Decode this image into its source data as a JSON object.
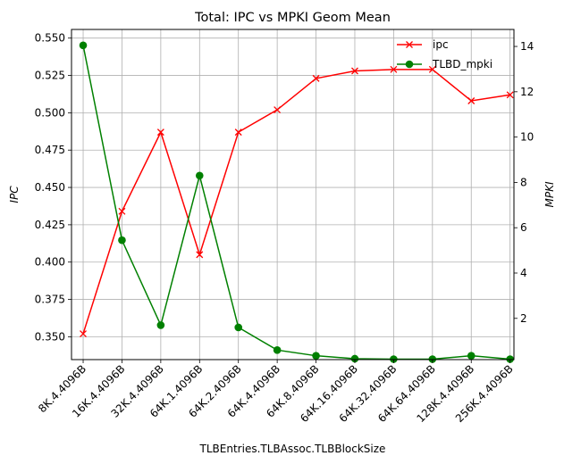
{
  "chart_data": {
    "type": "line",
    "title": "Total: IPC vs MPKI Geom Mean",
    "xlabel": "TLBEntries.TLBAssoc.TLBBlockSize",
    "ylabel": "IPC",
    "y2label": "MPKI",
    "categories": [
      "8K.4.4096B",
      "16K.4.4096B",
      "32K.4.4096B",
      "64K.1.4096B",
      "64K.2.4096B",
      "64K.4.4096B",
      "64K.8.4096B",
      "64K.16.4096B",
      "64K.32.4096B",
      "64K.64.4096B",
      "128K.4.4096B",
      "256K.4.4096B"
    ],
    "ylim": [
      0.3347,
      0.5558
    ],
    "y2lim": [
      0.18,
      14.75
    ],
    "yticks": [
      "0.350",
      "0.375",
      "0.400",
      "0.425",
      "0.450",
      "0.475",
      "0.500",
      "0.525",
      "0.550"
    ],
    "y2ticks": [
      "2",
      "4",
      "6",
      "8",
      "10",
      "12",
      "14"
    ],
    "grid": true,
    "legend_position": "top-right",
    "series": [
      {
        "name": "ipc",
        "axis": "left",
        "color": "#ff0000",
        "marker": "x",
        "values": [
          0.352,
          0.434,
          0.487,
          0.405,
          0.487,
          0.502,
          0.523,
          0.528,
          0.529,
          0.529,
          0.508,
          0.512
        ]
      },
      {
        "name": "TLBD_mpki",
        "axis": "right",
        "color": "#008000",
        "marker": "o",
        "values": [
          14.05,
          5.45,
          1.7,
          8.3,
          1.6,
          0.6,
          0.35,
          0.22,
          0.2,
          0.2,
          0.35,
          0.2
        ]
      }
    ]
  }
}
